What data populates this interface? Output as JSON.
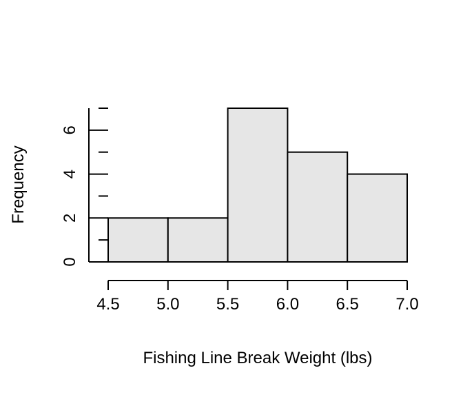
{
  "chart_data": {
    "type": "bar",
    "title": "",
    "xlabel": "Fishing Line Break Weight (lbs)",
    "ylabel": "Frequency",
    "bins": [
      [
        4.5,
        5.0
      ],
      [
        5.0,
        5.5
      ],
      [
        5.5,
        6.0
      ],
      [
        6.0,
        6.5
      ],
      [
        6.5,
        7.0
      ]
    ],
    "categories": [
      "4.5-5.0",
      "5.0-5.5",
      "5.5-6.0",
      "6.0-6.5",
      "6.5-7.0"
    ],
    "values": [
      2,
      2,
      7,
      5,
      4
    ],
    "xlim": [
      4.5,
      7.0
    ],
    "ylim": [
      0,
      7
    ],
    "x_ticks": [
      "4.5",
      "5.0",
      "5.5",
      "6.0",
      "6.5",
      "7.0"
    ],
    "y_ticks": [
      "0",
      "2",
      "4",
      "6"
    ],
    "y_minor_ticks": [
      1,
      3,
      5,
      7
    ],
    "grid": false,
    "bar_fill": "#e6e6e6",
    "bar_stroke": "#000000"
  }
}
